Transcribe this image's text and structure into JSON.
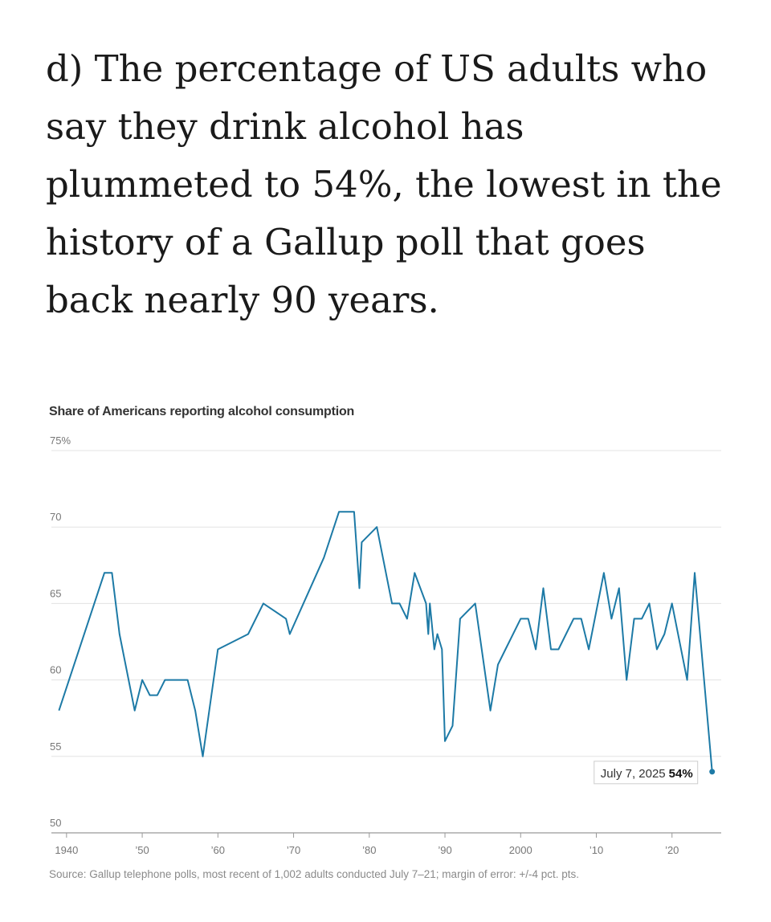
{
  "headline": "d) The percentage of US adults who say they drink alcohol has plummeted to 54%, the lowest in the history of a Gallup poll that goes back nearly 90 years.",
  "colors": {
    "line": "#1d7aa6",
    "grid": "#e3e3e3",
    "axis": "#999999"
  },
  "chart_data": {
    "type": "line",
    "title": "Share of Americans reporting alcohol consumption",
    "source": "Source: Gallup telephone polls, most recent of 1,002 adults conducted July 7–21; margin of error: +/-4 pct. pts.",
    "ylim": [
      50,
      75
    ],
    "xlim": [
      1938,
      2026.5
    ],
    "grid": true,
    "y_ticks": [
      {
        "value": 75,
        "label": "75%"
      },
      {
        "value": 70,
        "label": "70"
      },
      {
        "value": 65,
        "label": "65"
      },
      {
        "value": 60,
        "label": "60"
      },
      {
        "value": 55,
        "label": "55"
      },
      {
        "value": 50,
        "label": "50"
      }
    ],
    "x_ticks": [
      {
        "value": 1940,
        "label": "1940"
      },
      {
        "value": 1950,
        "label": "’50"
      },
      {
        "value": 1960,
        "label": "’60"
      },
      {
        "value": 1970,
        "label": "’70"
      },
      {
        "value": 1980,
        "label": "’80"
      },
      {
        "value": 1990,
        "label": "’90"
      },
      {
        "value": 2000,
        "label": "2000"
      },
      {
        "value": 2010,
        "label": "’10"
      },
      {
        "value": 2020,
        "label": "’20"
      }
    ],
    "series": [
      {
        "x": [
          1939,
          1945,
          1946,
          1947,
          1949,
          1950,
          1951,
          1952,
          1953,
          1956,
          1957,
          1958,
          1960,
          1964,
          1966,
          1969,
          1969.5,
          1974,
          1976,
          1978,
          1978.7,
          1979,
          1981,
          1983,
          1984,
          1985,
          1986,
          1987.5,
          1987.8,
          1988,
          1988.6,
          1989,
          1989.6,
          1990,
          1991,
          1992,
          1994,
          1996,
          1997,
          1998,
          2000,
          2001,
          2002,
          2003,
          2004,
          2005,
          2007,
          2008,
          2009,
          2011,
          2012,
          2013,
          2014,
          2015,
          2016,
          2017,
          2018,
          2019,
          2020,
          2022,
          2023,
          2025.3
        ],
        "y": [
          58,
          67,
          67,
          63,
          58,
          60,
          59,
          59,
          60,
          60,
          58,
          55,
          62,
          63,
          65,
          64,
          63,
          68,
          71,
          71,
          66,
          69,
          70,
          65,
          65,
          64,
          67,
          65,
          63,
          65,
          62,
          63,
          62,
          56,
          57,
          64,
          65,
          58,
          61,
          62,
          64,
          64,
          62,
          66,
          62,
          62,
          64,
          64,
          62,
          67,
          64,
          66,
          60,
          64,
          64,
          65,
          62,
          63,
          65,
          60,
          67,
          54
        ]
      }
    ],
    "annotation": {
      "date": "July 7, 2025",
      "value": "54%"
    }
  }
}
